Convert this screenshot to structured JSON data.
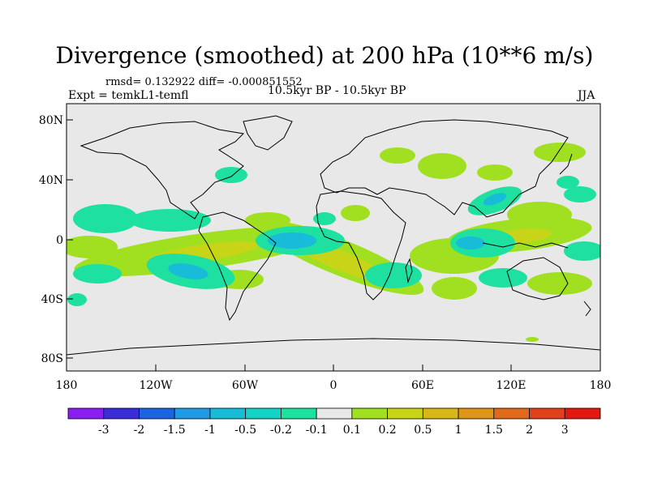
{
  "title": "Divergence (smoothed) at 200 hPa (10**6 m/s)",
  "stats": "rmsd= 0.132922 diff= -0.000851552",
  "experiment": "Expt = temkL1-temfl",
  "periods": "10.5kyr BP - 10.5kyr BP",
  "season": "JJA",
  "lat_ticks": [
    "80N",
    "40N",
    "0",
    "40S",
    "80S"
  ],
  "lon_ticks": [
    "180",
    "120W",
    "60W",
    "0",
    "60E",
    "120E",
    "180"
  ],
  "colorbar": {
    "labels": [
      "-3",
      "-2",
      "-1.5",
      "-1",
      "-0.5",
      "-0.2",
      "-0.1",
      "0.1",
      "0.2",
      "0.5",
      "1",
      "1.5",
      "2",
      "3"
    ],
    "colors": [
      "#8a1ef0",
      "#3a2cd6",
      "#1a64e0",
      "#1f9ae6",
      "#18bcd8",
      "#14d2c4",
      "#1ee0a0",
      "#e8e8e8",
      "#a0e020",
      "#c8d418",
      "#d8b818",
      "#e0941a",
      "#e06a1a",
      "#e0401a",
      "#e01a10"
    ]
  },
  "map_colors": {
    "background": "#e8e8e8",
    "positive_weak": "#a0e020",
    "positive_mid": "#c8d418",
    "negative_weak": "#1ee0a0",
    "negative_mid": "#18bcd8"
  }
}
